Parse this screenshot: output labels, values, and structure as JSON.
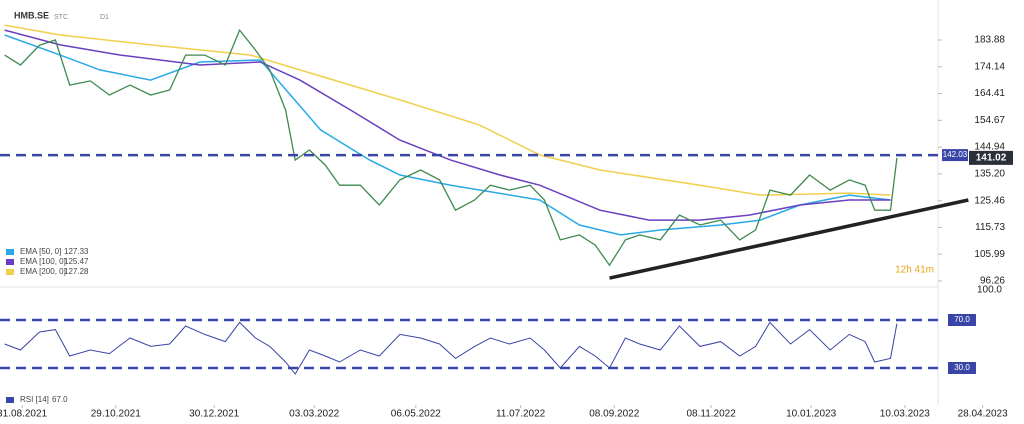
{
  "chart_data": {
    "type": "line",
    "symbol": "HMB.SE",
    "mode": "STC",
    "timeframe": "D1",
    "x": [
      -11,
      -1,
      11,
      21,
      30,
      43,
      55,
      68,
      81,
      93,
      103,
      115,
      128,
      137,
      147,
      156,
      166,
      172,
      181,
      191,
      200,
      213,
      225,
      238,
      251,
      263,
      273,
      285,
      295,
      307,
      320,
      329,
      339,
      351,
      361,
      370,
      380,
      389,
      402,
      414,
      427,
      440,
      452,
      462,
      471,
      484,
      496,
      509,
      521,
      531,
      537,
      547,
      551
    ],
    "values": [
      178.4,
      174.8,
      182,
      183.9,
      167.5,
      169,
      163.9,
      167.5,
      163.9,
      165.7,
      178.4,
      178.4,
      174.8,
      187.5,
      180.2,
      173,
      158.4,
      140.2,
      143.9,
      138.4,
      131.1,
      131.1,
      123.9,
      133,
      136.6,
      133,
      122,
      125.7,
      131.1,
      129.3,
      131.1,
      125.7,
      111.2,
      113,
      109.3,
      102,
      111.2,
      113,
      111.2,
      120.2,
      116.6,
      118.4,
      111.2,
      114.8,
      129.3,
      127.5,
      134.8,
      129.3,
      133,
      131.1,
      122,
      122,
      141
    ],
    "color": "#3d8a4f",
    "xlim": [
      -13.9,
      575
    ],
    "xticks": [
      {
        "value": 0,
        "label": "31.08.2021"
      },
      {
        "value": 59,
        "label": "29.10.2021"
      },
      {
        "value": 121,
        "label": "30.12.2021"
      },
      {
        "value": 184,
        "label": "03.03.2022"
      },
      {
        "value": 248,
        "label": "06.05.2022"
      },
      {
        "value": 314,
        "label": "11.07.2022"
      },
      {
        "value": 373,
        "label": "08.09.2022"
      },
      {
        "value": 434,
        "label": "08.11.2022"
      },
      {
        "value": 497,
        "label": "10.01.2023"
      },
      {
        "value": 556,
        "label": "10.03.2023"
      },
      {
        "value": 605,
        "label": "28.04.2023"
      }
    ],
    "ylim": [
      94.79,
      198.43
    ],
    "yticks": [
      183.88,
      174.14,
      164.41,
      154.67,
      144.94,
      {
        "value": 135.2,
        "label": "135.20"
      },
      125.46,
      115.73,
      105.99,
      96.26
    ],
    "series": [
      {
        "name": "EMA [50, 0]",
        "last_value": 127.33,
        "color": "#29a9e8",
        "x": [
          -11,
          24,
          49,
          81,
          112,
          150,
          188,
          219,
          238,
          270,
          326,
          351,
          377,
          402,
          440,
          465,
          490,
          521,
          547
        ],
        "values": [
          185.7,
          178.4,
          173,
          169.3,
          175.9,
          176.6,
          151.2,
          140.2,
          134.8,
          131.1,
          125.7,
          116.6,
          113,
          114.8,
          116.6,
          118.4,
          123.9,
          127.5,
          125.7
        ]
      },
      {
        "name": "EMA [100, 0]",
        "last_value": 125.47,
        "color": "#6a3fc1",
        "x": [
          -11,
          24,
          62,
          112,
          150,
          175,
          207,
          238,
          270,
          301,
          326,
          364,
          395,
          427,
          458,
          490,
          521,
          547
        ],
        "values": [
          187.5,
          182.1,
          178.4,
          174.8,
          175.9,
          169.3,
          158.4,
          147.5,
          140.2,
          134.8,
          131.1,
          122,
          118.4,
          118.4,
          120.2,
          123.9,
          125.7,
          125.7
        ]
      },
      {
        "name": "EMA [200, 0]",
        "last_value": 127.28,
        "color": "#f2cf4a",
        "x": [
          -11,
          24,
          81,
          144,
          175,
          238,
          288,
          326,
          364,
          427,
          465,
          521,
          547
        ],
        "values": [
          189.3,
          185.7,
          182.1,
          178.4,
          173,
          162.1,
          153,
          142.1,
          136.6,
          131.1,
          127.5,
          128.2,
          127.5
        ]
      }
    ],
    "hline": {
      "value": 142.03,
      "color": "#3a45a8"
    },
    "last_price": 141.02,
    "countdown": "12h 41m",
    "trendline": {
      "x": [
        370,
        596
      ],
      "values": [
        97.3,
        125.7
      ],
      "color": "#222"
    },
    "rsi": {
      "name": "RSI [14]",
      "last_value": 67,
      "last_value_label": "67.0",
      "color": "#3a45a8",
      "ylim": [
        0,
        100
      ],
      "yticks": [
        {
          "value": 100,
          "label": "100.0"
        },
        {
          "value": 70,
          "label": "70.0"
        },
        {
          "value": 30,
          "label": "30.0"
        }
      ],
      "values": [
        50,
        45,
        60,
        62,
        40,
        45,
        42,
        55,
        48,
        50,
        65,
        58,
        52,
        68,
        55,
        48,
        35,
        25,
        45,
        40,
        35,
        45,
        40,
        58,
        55,
        50,
        38,
        48,
        55,
        50,
        55,
        45,
        30,
        48,
        40,
        30,
        55,
        50,
        45,
        65,
        48,
        52,
        40,
        48,
        68,
        50,
        62,
        45,
        58,
        52,
        35,
        38,
        67
      ]
    }
  }
}
